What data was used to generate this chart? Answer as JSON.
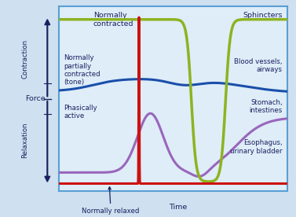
{
  "bg_color": "#cfe0f0",
  "plot_bg_color": "#deedf8",
  "border_color": "#5a9fd4",
  "color_olive": "#8db320",
  "color_blue": "#1a4faa",
  "color_red": "#cc1111",
  "color_purple": "#9966bb",
  "text_color": "#1a2060",
  "label_normally_contracted": "Normally\ncontracted",
  "label_normally_partial": "Normally\npartially\ncontracted\n(tone)",
  "label_phasically": "Phasically\nactive",
  "label_normally_relaxed": "Normally relaxed",
  "label_sphincters": "Sphincters",
  "label_blood_vessels": "Blood vessels,\nairways",
  "label_stomach": "Stomach,\nintestines",
  "label_esophagus": "Esophagus,\nurinary bladder",
  "xlabel": "Time",
  "ylabel_contraction": "Contraction",
  "ylabel_force": "Force",
  "ylabel_relaxation": "Relaxation"
}
